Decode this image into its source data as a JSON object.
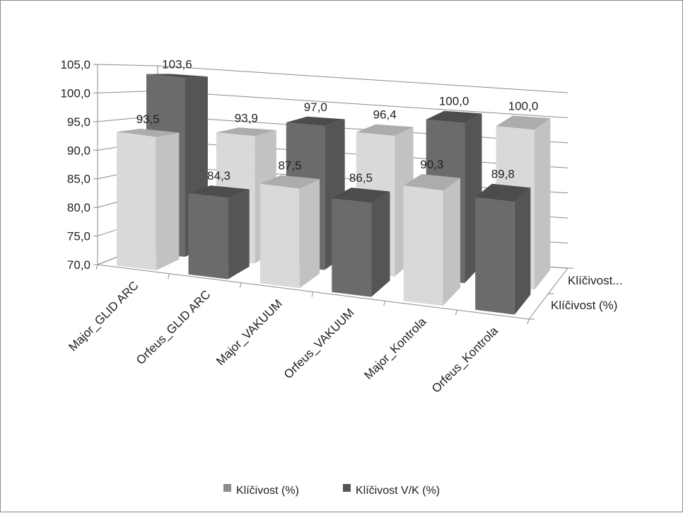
{
  "chart_data": {
    "type": "bar",
    "subtype": "3d-clustered",
    "title": "",
    "xlabel": "",
    "ylabel": "",
    "ylim": [
      70,
      105
    ],
    "yticks": [
      "70,0",
      "75,0",
      "80,0",
      "85,0",
      "90,0",
      "95,0",
      "100,0",
      "105,0"
    ],
    "grid": true,
    "legend_position": "bottom",
    "categories": [
      "Major_GLID ARC",
      "Orfeus_GLID ARC",
      "Major_VAKUUM",
      "Orfeus_VAKUUM",
      "Major_Kontrola",
      "Orfeus_Kontrola"
    ],
    "depth_labels": [
      "Klíčivost...",
      "Klíčivost (%)"
    ],
    "series": [
      {
        "name": "Klíčivost (%)",
        "values": [
          93.5,
          84.3,
          87.5,
          86.5,
          90.3,
          89.8
        ],
        "labels": [
          "93,5",
          "84,3",
          "87,5",
          "86,5",
          "90,3",
          "89,8"
        ]
      },
      {
        "name": "Klíčivost V/K (%)",
        "values": [
          103.6,
          93.9,
          97.0,
          96.4,
          100.0,
          100.0
        ],
        "labels": [
          "103,6",
          "93,9",
          "97,0",
          "96,4",
          "100,0",
          "100,0"
        ]
      }
    ],
    "colors": {
      "dark": [
        "#6b6b6b",
        "#555555",
        "#4c4c4c"
      ],
      "light": [
        "#d9d9d9",
        "#c2c2c2",
        "#acacac"
      ],
      "grid": "#8a8a8a",
      "legend_light": "#8c8c8c",
      "legend_dark": "#555555"
    }
  }
}
